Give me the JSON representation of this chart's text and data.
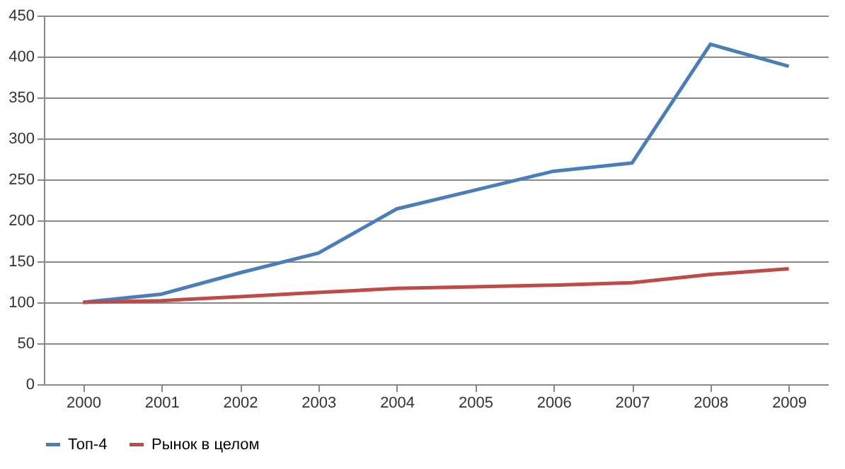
{
  "chart_data": {
    "type": "line",
    "categories": [
      "2000",
      "2001",
      "2002",
      "2003",
      "2004",
      "2005",
      "2006",
      "2007",
      "2008",
      "2009"
    ],
    "series": [
      {
        "name": "Топ-4",
        "color": "#4a7ebb",
        "values": [
          100,
          110,
          136,
          160,
          214,
          237,
          260,
          270,
          415,
          388
        ]
      },
      {
        "name": "Рынок в целом",
        "color": "#be4b48",
        "values": [
          100,
          102,
          107,
          112,
          117,
          119,
          121,
          124,
          134,
          141
        ]
      }
    ],
    "ylim": [
      0,
      450
    ],
    "yticks": [
      0,
      50,
      100,
      150,
      200,
      250,
      300,
      350,
      400,
      450
    ],
    "grid": "y",
    "legend": "bottom",
    "marker": "none",
    "line_style": "solid"
  }
}
